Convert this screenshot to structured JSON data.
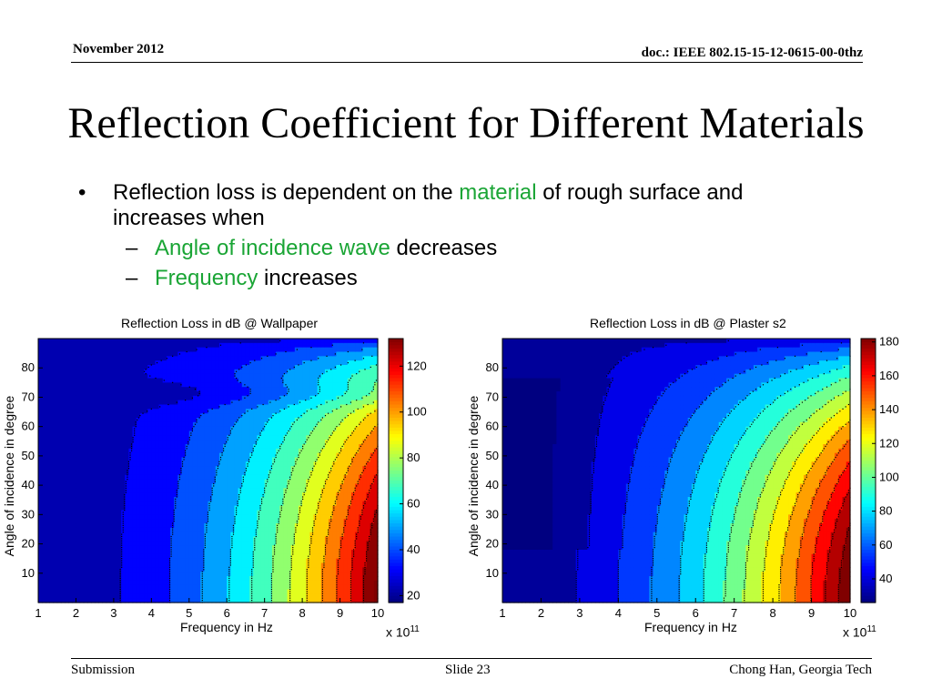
{
  "header": {
    "date": "November 2012",
    "doc_id": "doc.: IEEE 802.15-15-12-0615-00-0thz"
  },
  "title": "Reflection Coefficient for Different Materials",
  "bullets": {
    "main": {
      "pre": "Reflection loss is dependent on the ",
      "highlight": "material",
      "post": " of rough surface and increases when"
    },
    "sub": [
      {
        "highlight": "Angle of incidence wave",
        "post": " decreases"
      },
      {
        "highlight": "Frequency",
        "post": " increases"
      }
    ]
  },
  "colors": {
    "highlight": "#1aa535",
    "text": "#000000"
  },
  "chart_data": [
    {
      "type": "heatmap",
      "style": "filled-contour",
      "colormap": "jet",
      "title": "Reflection Loss in dB @ Wallpaper",
      "xlabel": "Frequency in Hz",
      "x_multiplier": "x 10",
      "x_multiplier_exp": "11",
      "ylabel": "Angle of incidence in degree",
      "xlim": [
        1,
        10
      ],
      "ylim": [
        0,
        90
      ],
      "xticks": [
        1,
        2,
        3,
        4,
        5,
        6,
        7,
        8,
        9,
        10
      ],
      "yticks": [
        10,
        20,
        30,
        40,
        50,
        60,
        70,
        80
      ],
      "colorbar": {
        "range": [
          17,
          132
        ],
        "ticks": [
          20,
          40,
          60,
          80,
          100,
          120
        ]
      },
      "contour_interval": 9,
      "grid": false,
      "model": {
        "base": 22,
        "ridge_center_deg": 71,
        "ridge_width_deg": 4.5,
        "ridge_depth": 8,
        "onset_deg": 28,
        "onset_width_deg": 10,
        "onset_depth": 4
      }
    },
    {
      "type": "heatmap",
      "style": "filled-contour",
      "colormap": "jet",
      "title": "Reflection Loss in dB @ Plaster s2",
      "xlabel": "Frequency in Hz",
      "x_multiplier": "x 10",
      "x_multiplier_exp": "11",
      "ylabel": "Angle of incidence in degree",
      "xlim": [
        1,
        10
      ],
      "ylim": [
        0,
        90
      ],
      "xticks": [
        1,
        2,
        3,
        4,
        5,
        6,
        7,
        8,
        9,
        10
      ],
      "yticks": [
        10,
        20,
        30,
        40,
        50,
        60,
        70,
        80
      ],
      "colorbar": {
        "range": [
          26,
          182
        ],
        "ticks": [
          40,
          60,
          80,
          100,
          120,
          140,
          160,
          180
        ]
      },
      "contour_interval": 12,
      "grid": false,
      "model": {
        "base": 31,
        "well_min_freq": 1.6,
        "well_min_deg": 18,
        "well_top_deg": 77,
        "well_depth": 12
      }
    }
  ],
  "footer": {
    "left": "Submission",
    "center": "Slide 23",
    "right": "Chong Han, Georgia Tech"
  }
}
